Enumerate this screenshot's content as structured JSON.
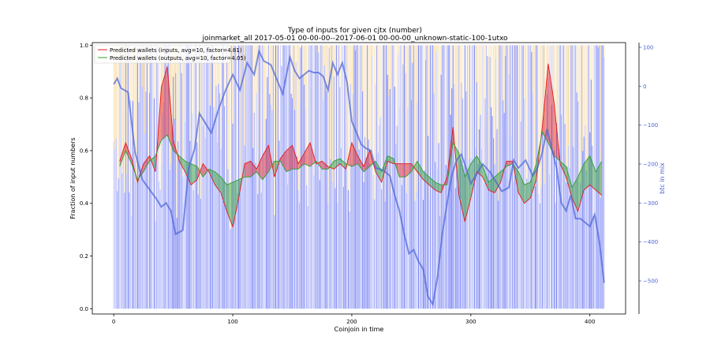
{
  "chart_data": {
    "type": "line",
    "title": "Type of inputs for given cjtx (number)",
    "subtitle": "joinmarket_all 2017-05-01 00-00-00--2017-06-01 00-00-00_unknown-static-100-1utxo",
    "xlabel": "Coinjoin in time",
    "ylabel": "Fraction of input numbers",
    "y2label": "btc in mix",
    "xlim": [
      -18,
      430
    ],
    "ylim": [
      -0.02,
      1.01
    ],
    "y2lim": [
      -585,
      112
    ],
    "x_ticks": [
      0,
      100,
      200,
      300,
      400
    ],
    "y_ticks": [
      0.0,
      0.2,
      0.4,
      0.6,
      0.8,
      1.0
    ],
    "y2_ticks": [
      100,
      0,
      -100,
      -200,
      -300,
      -400,
      -500
    ],
    "x_tick_labels": [
      "0",
      "100",
      "200",
      "300",
      "400"
    ],
    "y_tick_labels": [
      "0.0",
      "0.2",
      "0.4",
      "0.6",
      "0.8",
      "1.0"
    ],
    "y2_tick_labels": [
      "100",
      "0",
      "−100",
      "−200",
      "−300",
      "−400",
      "−500"
    ],
    "legend_position": "top-left",
    "grid": false,
    "series": [
      {
        "name": "Predicted wallets (inputs, avg=10, factor=4.81)",
        "axis": "left",
        "color": "#e41a1c",
        "x": [
          5,
          10,
          15,
          20,
          25,
          30,
          35,
          40,
          45,
          50,
          55,
          60,
          65,
          70,
          75,
          80,
          85,
          90,
          95,
          100,
          105,
          110,
          115,
          120,
          125,
          130,
          135,
          140,
          145,
          150,
          155,
          160,
          165,
          170,
          175,
          180,
          185,
          190,
          195,
          200,
          205,
          210,
          215,
          220,
          225,
          230,
          235,
          240,
          245,
          250,
          255,
          260,
          265,
          270,
          275,
          280,
          285,
          290,
          295,
          300,
          305,
          310,
          315,
          320,
          325,
          330,
          335,
          340,
          345,
          350,
          355,
          360,
          365,
          370,
          375,
          380,
          385,
          390,
          395,
          400,
          405,
          410
        ],
        "values": [
          0.56,
          0.63,
          0.57,
          0.48,
          0.55,
          0.58,
          0.52,
          0.84,
          0.92,
          0.64,
          0.56,
          0.52,
          0.47,
          0.49,
          0.55,
          0.52,
          0.47,
          0.44,
          0.37,
          0.31,
          0.42,
          0.55,
          0.56,
          0.53,
          0.58,
          0.62,
          0.5,
          0.57,
          0.6,
          0.62,
          0.55,
          0.59,
          0.63,
          0.55,
          0.56,
          0.54,
          0.53,
          0.55,
          0.53,
          0.63,
          0.58,
          0.54,
          0.6,
          0.52,
          0.48,
          0.56,
          0.55,
          0.55,
          0.55,
          0.55,
          0.52,
          0.49,
          0.47,
          0.45,
          0.44,
          0.5,
          0.69,
          0.43,
          0.33,
          0.42,
          0.52,
          0.5,
          0.45,
          0.44,
          0.48,
          0.56,
          0.56,
          0.44,
          0.4,
          0.42,
          0.49,
          0.69,
          0.93,
          0.78,
          0.55,
          0.5,
          0.42,
          0.37,
          0.45,
          0.47,
          0.45,
          0.43
        ]
      },
      {
        "name": "Predicted wallets (outputs, avg=10, factor=4.05)",
        "axis": "left",
        "color": "#2ca02c",
        "x": [
          5,
          10,
          15,
          20,
          25,
          30,
          35,
          40,
          45,
          50,
          55,
          60,
          65,
          70,
          75,
          80,
          85,
          90,
          95,
          100,
          105,
          110,
          115,
          120,
          125,
          130,
          135,
          140,
          145,
          150,
          155,
          160,
          165,
          170,
          175,
          180,
          185,
          190,
          195,
          200,
          205,
          210,
          215,
          220,
          225,
          230,
          235,
          240,
          245,
          250,
          255,
          260,
          265,
          270,
          275,
          280,
          285,
          290,
          295,
          300,
          305,
          310,
          315,
          320,
          325,
          330,
          335,
          340,
          345,
          350,
          355,
          360,
          365,
          370,
          375,
          380,
          385,
          390,
          395,
          400,
          405,
          410
        ],
        "values": [
          0.54,
          0.6,
          0.55,
          0.49,
          0.52,
          0.56,
          0.58,
          0.64,
          0.66,
          0.6,
          0.58,
          0.56,
          0.55,
          0.54,
          0.5,
          0.53,
          0.52,
          0.5,
          0.47,
          0.48,
          0.49,
          0.5,
          0.5,
          0.52,
          0.49,
          0.52,
          0.56,
          0.56,
          0.52,
          0.53,
          0.53,
          0.55,
          0.54,
          0.56,
          0.53,
          0.53,
          0.56,
          0.57,
          0.55,
          0.54,
          0.55,
          0.52,
          0.54,
          0.56,
          0.52,
          0.58,
          0.57,
          0.5,
          0.5,
          0.52,
          0.56,
          0.52,
          0.5,
          0.48,
          0.47,
          0.47,
          0.63,
          0.59,
          0.5,
          0.55,
          0.58,
          0.54,
          0.48,
          0.5,
          0.52,
          0.54,
          0.55,
          0.52,
          0.47,
          0.48,
          0.55,
          0.67,
          0.63,
          0.58,
          0.56,
          0.54,
          0.46,
          0.5,
          0.55,
          0.58,
          0.52,
          0.56
        ]
      },
      {
        "name": "btc in mix",
        "axis": "right",
        "color": "#4a63d6",
        "x": [
          0,
          3,
          6,
          12,
          18,
          24,
          30,
          36,
          40,
          44,
          48,
          52,
          58,
          63,
          68,
          72,
          76,
          82,
          88,
          94,
          100,
          106,
          112,
          118,
          122,
          126,
          132,
          138,
          142,
          148,
          152,
          156,
          160,
          164,
          168,
          172,
          176,
          180,
          184,
          188,
          192,
          196,
          200,
          204,
          208,
          212,
          216,
          220,
          226,
          232,
          236,
          240,
          244,
          248,
          252,
          256,
          260,
          264,
          268,
          272,
          276,
          280,
          284,
          288,
          292,
          296,
          300,
          304,
          310,
          316,
          320,
          326,
          332,
          336,
          340,
          346,
          352,
          356,
          360,
          364,
          368,
          372,
          376,
          380,
          384,
          388,
          392,
          396,
          400,
          404,
          408,
          412
        ],
        "values": [
          5,
          20,
          -5,
          -15,
          -170,
          -240,
          -265,
          -290,
          -310,
          -300,
          -320,
          -380,
          -370,
          -210,
          -160,
          -70,
          -90,
          -120,
          -60,
          -10,
          30,
          -10,
          60,
          30,
          90,
          65,
          55,
          10,
          -20,
          75,
          40,
          20,
          30,
          40,
          35,
          35,
          25,
          -10,
          60,
          30,
          60,
          10,
          -90,
          -120,
          -150,
          -160,
          -165,
          -210,
          -215,
          -230,
          -280,
          -320,
          -380,
          -430,
          -420,
          -450,
          -470,
          -540,
          -560,
          -490,
          -380,
          -300,
          -230,
          -190,
          -175,
          -210,
          -250,
          -230,
          -200,
          -220,
          -240,
          -270,
          -260,
          -190,
          -210,
          -190,
          -230,
          -210,
          -170,
          -110,
          -160,
          -210,
          -300,
          -320,
          -280,
          -340,
          -340,
          -350,
          -360,
          -330,
          -400,
          -505
        ]
      }
    ],
    "background_bars": {
      "description_colors": [
        "#4d5bf0",
        "#f0c060"
      ],
      "note": "alternating per-coinjoin stacked bars: blue lower share, yellow/orange upper share"
    }
  }
}
